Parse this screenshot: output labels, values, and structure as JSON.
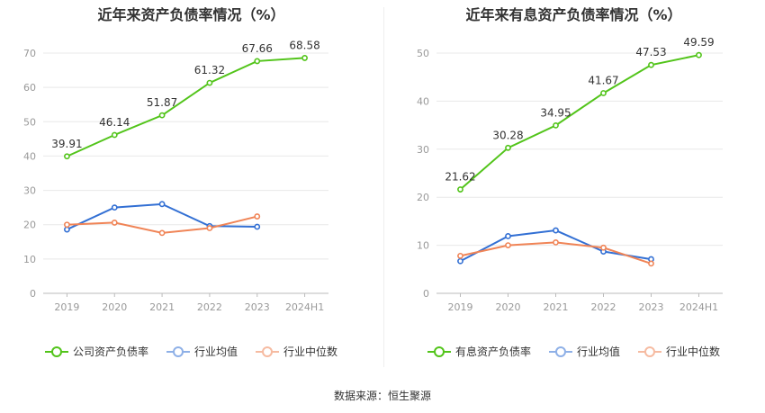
{
  "source": "数据来源：恒生聚源",
  "colors": {
    "main": "#52c41a",
    "avg": "#3370d4",
    "median": "#f08456",
    "axis": "#999999",
    "grid": "#e8e8e8",
    "label": "#333333"
  },
  "chart_data": [
    {
      "type": "line",
      "title": "近年来资产负债率情况（%）",
      "categories": [
        "2019",
        "2020",
        "2021",
        "2022",
        "2023",
        "2024H1"
      ],
      "ylim": [
        0,
        70
      ],
      "yticks": [
        0,
        10,
        20,
        30,
        40,
        50,
        60,
        70
      ],
      "grid": true,
      "legend_position": "bottom",
      "series": [
        {
          "name": "公司资产负债率",
          "color": "#52c41a",
          "labels": true,
          "values": [
            39.91,
            46.14,
            51.87,
            61.32,
            67.66,
            68.58
          ],
          "value_labels": [
            "39.91",
            "46.14",
            "51.87",
            "61.32",
            "67.66",
            "68.58"
          ]
        },
        {
          "name": "行业均值",
          "color": "#3370d4",
          "labels": false,
          "values": [
            18.6,
            25.0,
            26.0,
            19.6,
            19.4,
            null
          ]
        },
        {
          "name": "行业中位数",
          "color": "#f08456",
          "labels": false,
          "values": [
            20.0,
            20.6,
            17.6,
            19.0,
            22.4,
            null
          ]
        }
      ]
    },
    {
      "type": "line",
      "title": "近年来有息资产负债率情况（%）",
      "categories": [
        "2019",
        "2020",
        "2021",
        "2022",
        "2023",
        "2024H1"
      ],
      "ylim": [
        0,
        50
      ],
      "yticks": [
        0,
        10,
        20,
        30,
        40,
        50
      ],
      "grid": true,
      "legend_position": "bottom",
      "series": [
        {
          "name": "有息资产负债率",
          "color": "#52c41a",
          "labels": true,
          "values": [
            21.62,
            30.28,
            34.95,
            41.67,
            47.53,
            49.59
          ],
          "value_labels": [
            "21.62",
            "30.28",
            "34.95",
            "41.67",
            "47.53",
            "49.59"
          ]
        },
        {
          "name": "行业均值",
          "color": "#3370d4",
          "labels": false,
          "values": [
            6.7,
            11.9,
            13.1,
            8.7,
            7.1,
            null
          ]
        },
        {
          "name": "行业中位数",
          "color": "#f08456",
          "labels": false,
          "values": [
            7.8,
            10.0,
            10.6,
            9.5,
            6.2,
            null
          ]
        }
      ]
    }
  ]
}
